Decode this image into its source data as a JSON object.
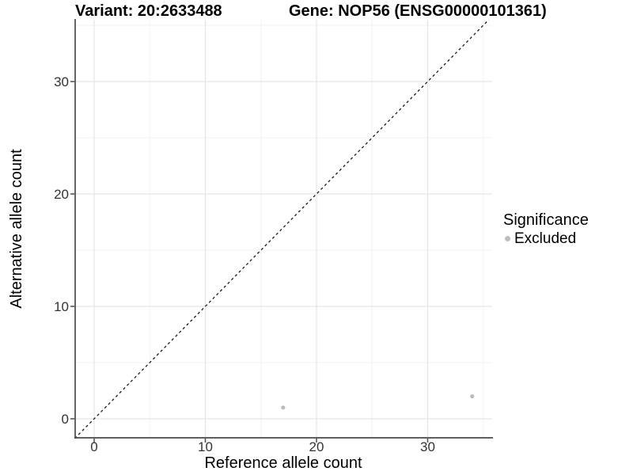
{
  "chart_data": {
    "type": "scatter",
    "title_parts": [
      "Variant: 20:2633488",
      "Gene: NOP56 (ENSG00000101361)"
    ],
    "xlabel": "Reference allele count",
    "ylabel": "Alternative allele count",
    "x_ticks": [
      0,
      10,
      20,
      30
    ],
    "x_minor_ticks": [
      5,
      15,
      25,
      35
    ],
    "y_ticks": [
      0,
      10,
      20,
      30
    ],
    "y_minor_ticks": [
      5,
      15,
      25,
      35
    ],
    "xlim": [
      -1.75,
      35.8
    ],
    "ylim": [
      -1.7,
      35.5
    ],
    "grid": true,
    "reference_line": {
      "slope": 1,
      "intercept": 0,
      "style": "dashed"
    },
    "series": [
      {
        "name": "Excluded",
        "points": [
          {
            "x": 17,
            "y": 1
          },
          {
            "x": 34,
            "y": 2
          }
        ]
      }
    ],
    "legend": {
      "title": "Significance",
      "position": "right",
      "entries": [
        {
          "label": "Excluded",
          "marker": "circle-icon"
        }
      ]
    },
    "style": {
      "point_color": "#bdbdbd",
      "reference_line_color": "#1a1a1a",
      "grid_major_color": "#e5e5e5",
      "grid_minor_color": "#f2f2f2",
      "axis_line_color": "#4a4a4a",
      "tick_label_color": "#333333",
      "title_color": "#000000"
    }
  }
}
